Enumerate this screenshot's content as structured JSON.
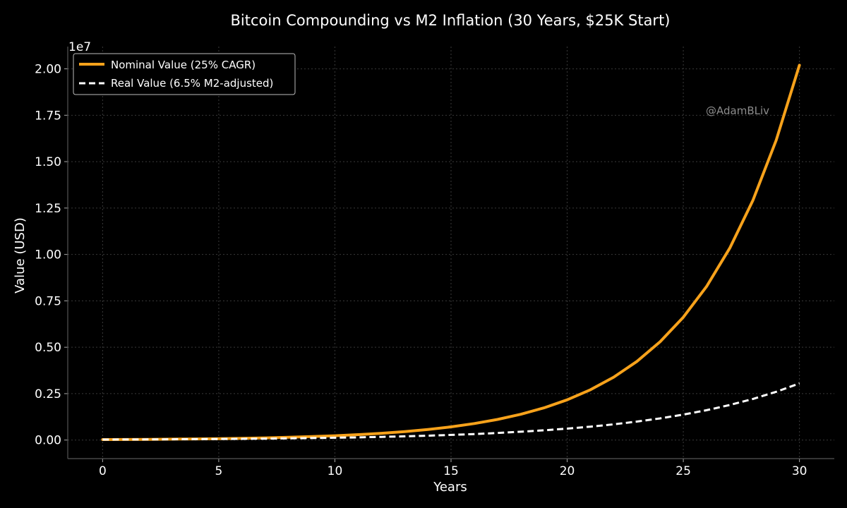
{
  "colors": {
    "background": "#000000",
    "nominal": "#f7a21b",
    "real": "#ffffff",
    "grid": "#3a3a3a",
    "watermark": "#8c8c8c"
  },
  "chart_data": {
    "type": "line",
    "title": "Bitcoin Compounding vs M2 Inflation (30 Years, $25K Start)",
    "xlabel": "Years",
    "ylabel": "Value (USD)",
    "y_offset_label": "1e7",
    "y_scale": 10000000,
    "xlim": [
      -1.5,
      31.5
    ],
    "ylim": [
      -1000000,
      21200000
    ],
    "x_ticks": [
      0,
      5,
      10,
      15,
      20,
      25,
      30
    ],
    "x_tick_labels": [
      "0",
      "5",
      "10",
      "15",
      "20",
      "25",
      "30"
    ],
    "y_ticks": [
      0,
      2500000,
      5000000,
      7500000,
      10000000,
      12500000,
      15000000,
      17500000,
      20000000
    ],
    "y_tick_labels": [
      "0.00",
      "0.25",
      "0.50",
      "0.75",
      "1.00",
      "1.25",
      "1.50",
      "1.75",
      "2.00"
    ],
    "grid": true,
    "legend_position": "top-left",
    "watermark": "@AdamBLiv",
    "x": [
      0,
      1,
      2,
      3,
      4,
      5,
      6,
      7,
      8,
      9,
      10,
      11,
      12,
      13,
      14,
      15,
      16,
      17,
      18,
      19,
      20,
      21,
      22,
      23,
      24,
      25,
      26,
      27,
      28,
      29,
      30
    ],
    "series": [
      {
        "name": "Nominal Value (25% CAGR)",
        "style": "solid",
        "values": [
          25000,
          31250,
          39063,
          48828,
          61035,
          76294,
          95367,
          119209,
          149012,
          186265,
          232831,
          291038,
          363798,
          454747,
          568434,
          710543,
          888178,
          1110223,
          1387779,
          1734723,
          2168404,
          2710505,
          3388132,
          4235165,
          5293956,
          6617445,
          8271806,
          10339758,
          12924697,
          16155871,
          20194839
        ]
      },
      {
        "name": "Real Value (6.5% M2-adjusted)",
        "style": "dashed",
        "values": [
          25000,
          29343,
          34440,
          40423,
          47444,
          55686,
          65359,
          76713,
          90040,
          105681,
          124039,
          145586,
          170876,
          200559,
          235399,
          276291,
          324286,
          380618,
          446736,
          524339,
          615421,
          722326,
          847802,
          995077,
          1167932,
          1370817,
          1608949,
          1888442,
          2216488,
          2601513,
          3053421
        ]
      }
    ]
  }
}
